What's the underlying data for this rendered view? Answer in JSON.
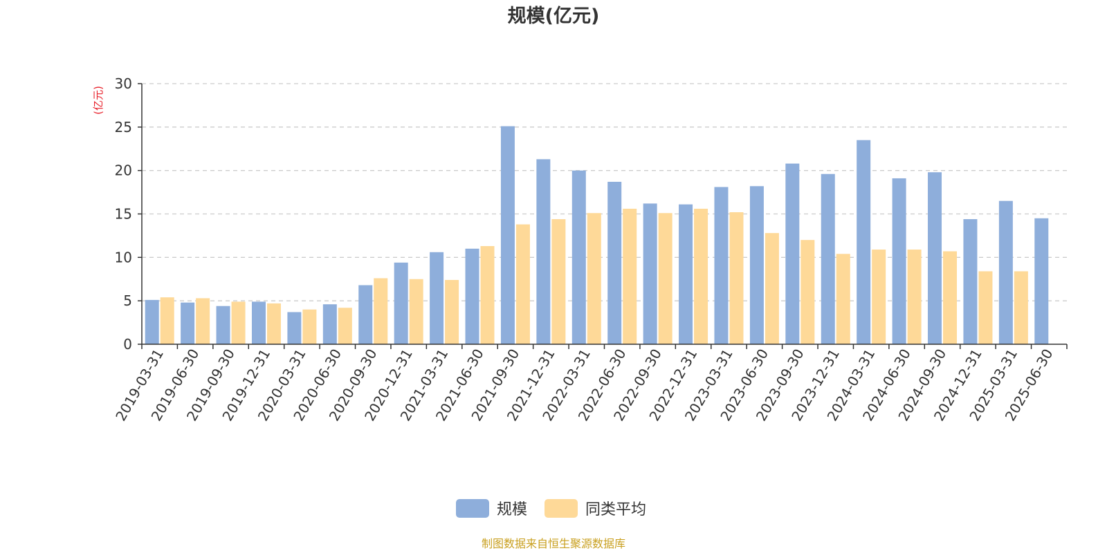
{
  "chart_data": {
    "type": "bar",
    "title": "规模(亿元)",
    "ylabel": "(亿元)",
    "xlabel": "",
    "ylim": [
      0,
      30
    ],
    "yticks": [
      0,
      5,
      10,
      15,
      20,
      25,
      30
    ],
    "grid": true,
    "legend_position": "bottom",
    "categories": [
      "2019-03-31",
      "2019-06-30",
      "2019-09-30",
      "2019-12-31",
      "2020-03-31",
      "2020-06-30",
      "2020-09-30",
      "2020-12-31",
      "2021-03-31",
      "2021-06-30",
      "2021-09-30",
      "2021-12-31",
      "2022-03-31",
      "2022-06-30",
      "2022-09-30",
      "2022-12-31",
      "2023-03-31",
      "2023-06-30",
      "2023-09-30",
      "2023-12-31",
      "2024-03-31",
      "2024-06-30",
      "2024-09-30",
      "2024-12-31",
      "2025-03-31",
      "2025-06-30"
    ],
    "series": [
      {
        "name": "规模",
        "color": "#8eaedb",
        "values": [
          5.1,
          4.8,
          4.4,
          4.9,
          3.7,
          4.6,
          6.8,
          9.4,
          10.6,
          11.0,
          25.1,
          21.3,
          20.0,
          18.7,
          16.2,
          16.1,
          18.1,
          18.2,
          20.8,
          19.6,
          23.5,
          19.1,
          19.8,
          14.4,
          16.5,
          14.5
        ]
      },
      {
        "name": "同类平均",
        "color": "#fed998",
        "values": [
          5.4,
          5.3,
          4.9,
          4.7,
          4.0,
          4.2,
          7.6,
          7.5,
          7.4,
          11.3,
          13.8,
          14.4,
          15.1,
          15.6,
          15.1,
          15.6,
          15.2,
          12.8,
          12.0,
          10.4,
          10.9,
          10.9,
          10.7,
          8.4,
          8.4,
          null
        ]
      }
    ]
  },
  "source_note": "制图数据来自恒生聚源数据库"
}
